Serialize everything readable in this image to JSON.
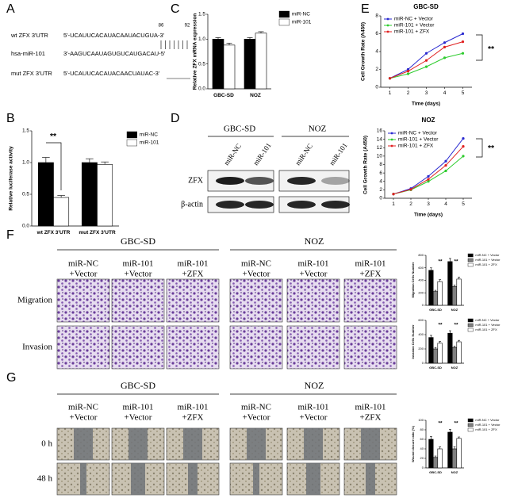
{
  "panel_labels": [
    "A",
    "B",
    "C",
    "D",
    "E",
    "F",
    "G"
  ],
  "panel_a": {
    "positions": [
      86,
      92
    ],
    "rows": [
      {
        "label": "wt ZFX 3'UTR",
        "sequence": "5'-UCAUUCACAUACAAUACUGUA-3'"
      },
      {
        "label": "hsa-miR-101",
        "sequence": "3'-AAGUCAAUAGUGUCAUGACAU-5'"
      },
      {
        "label": "mut ZFX 3'UTR",
        "sequence": "5'-UCAUUCACAUACAACUAUAC-3'"
      }
    ]
  },
  "panel_d": {
    "groups": [
      "GBC-SD",
      "NOZ"
    ],
    "lanes": [
      "miR-NC",
      "miR-101",
      "miR-NC",
      "miR-101"
    ],
    "rows": [
      "ZFX",
      "β-actin"
    ]
  },
  "panel_f": {
    "groups": [
      "GBC-SD",
      "NOZ"
    ],
    "columns": [
      [
        "miR-NC",
        "+Vector"
      ],
      [
        "miR-101",
        "+Vector"
      ],
      [
        "miR-101",
        "+ZFX"
      ],
      [
        "miR-NC",
        "+Vector"
      ],
      [
        "miR-101",
        "+Vector"
      ],
      [
        "miR-101",
        "+ZFX"
      ]
    ],
    "rows": [
      "Migration",
      "Invasion"
    ]
  },
  "panel_g": {
    "groups": [
      "GBC-SD",
      "NOZ"
    ],
    "columns": [
      [
        "miR-NC",
        "+Vector"
      ],
      [
        "miR-101",
        "+Vector"
      ],
      [
        "miR-101",
        "+ZFX"
      ],
      [
        "miR-NC",
        "+Vector"
      ],
      [
        "miR-101",
        "+Vector"
      ],
      [
        "miR-101",
        "+ZFX"
      ]
    ],
    "rows": [
      "0 h",
      "48 h"
    ]
  },
  "chart_data": [
    {
      "type": "bar",
      "ylabel": "Relative luciferase activity",
      "categories": [
        "wt ZFX 3'UTR",
        "mut ZFX 3'UTR"
      ],
      "series": [
        {
          "name": "miR-NC",
          "color": "#000000",
          "values": [
            1,
            1
          ],
          "errors": [
            0.08,
            0.06
          ]
        },
        {
          "name": "miR-101",
          "color": "#ffffff",
          "values": [
            0.45,
            0.97
          ],
          "errors": [
            0.03,
            0.04
          ]
        }
      ],
      "ylim": [
        0,
        1.5
      ],
      "yticks": [
        {
          "value": 0,
          "label": "0.0"
        },
        {
          "value": 0.5,
          "label": "0.5"
        },
        {
          "value": 1,
          "label": "1.0"
        },
        {
          "value": 1.5,
          "label": "1.5"
        }
      ],
      "annotations": [
        "**"
      ]
    },
    {
      "type": "bar",
      "ylabel": "Relative ZFX mRNA expression",
      "categories": [
        "GBC-SD",
        "NOZ"
      ],
      "series": [
        {
          "name": "miR-NC",
          "color": "#000000",
          "values": [
            1,
            1
          ],
          "errors": [
            0.03,
            0.03
          ]
        },
        {
          "name": "miR-101",
          "color": "#ffffff",
          "values": [
            0.88,
            1.12
          ],
          "errors": [
            0.04,
            0.03
          ]
        }
      ],
      "ylim": [
        0,
        1.5
      ],
      "yticks": [
        {
          "value": 0,
          "label": "0.0"
        },
        {
          "value": 0.5,
          "label": "0.5"
        },
        {
          "value": 1,
          "label": "1.0"
        },
        {
          "value": 1.5,
          "label": "1.5"
        }
      ]
    },
    {
      "type": "line",
      "title": "GBC-SD",
      "xlabel": "Time (days)",
      "ylabel": "Cell Growth Rate (A450)",
      "x": [
        1,
        2,
        3,
        4,
        5
      ],
      "xlim": [
        0.5,
        5.5
      ],
      "xticks": [
        1,
        2,
        3,
        4,
        5
      ],
      "ylim": [
        0,
        8
      ],
      "yticks": [
        0,
        2,
        4,
        6,
        8
      ],
      "series": [
        {
          "name": "miR-NC + Vector",
          "color": "#2a2ad0",
          "values": [
            1,
            2,
            3.8,
            5,
            6
          ]
        },
        {
          "name": "miR-101 + Vector",
          "color": "#2ecc2e",
          "values": [
            1,
            1.5,
            2.3,
            3.3,
            3.8
          ]
        },
        {
          "name": "miR-101 + ZFX",
          "color": "#e02020",
          "values": [
            1,
            1.8,
            3,
            4.5,
            5.1
          ]
        }
      ],
      "annotations": [
        "**"
      ]
    },
    {
      "type": "line",
      "title": "NOZ",
      "xlabel": "Time (days)",
      "ylabel": "Cell Growth Rate (A450)",
      "x": [
        1,
        2,
        3,
        4,
        5
      ],
      "xlim": [
        0.5,
        5.5
      ],
      "xticks": [
        1,
        2,
        3,
        4,
        5
      ],
      "ylim": [
        0,
        16
      ],
      "yticks": [
        0,
        2,
        4,
        6,
        8,
        10,
        12,
        14,
        16
      ],
      "series": [
        {
          "name": "miR-NC + Vector",
          "color": "#2a2ad0",
          "values": [
            1,
            2.3,
            5.2,
            8.8,
            14.2
          ]
        },
        {
          "name": "miR-101 + Vector",
          "color": "#2ecc2e",
          "values": [
            1,
            2,
            4,
            6.5,
            10
          ]
        },
        {
          "name": "miR-101 + ZFX",
          "color": "#e02020",
          "values": [
            1,
            2.1,
            4.5,
            7.8,
            12.3
          ]
        }
      ],
      "annotations": [
        "**"
      ]
    },
    {
      "type": "bar",
      "ylabel": "Migration Cells Number",
      "categories": [
        "GBC-SD",
        "NOZ"
      ],
      "series": [
        {
          "name": "miR-NC + Vector",
          "color": "#000000",
          "values": [
            560,
            700
          ],
          "errors": [
            40,
            50
          ]
        },
        {
          "name": "miR-101 + Vector",
          "color": "#808080",
          "values": [
            220,
            300
          ],
          "errors": [
            20,
            25
          ]
        },
        {
          "name": "miR-101 + ZFX",
          "color": "#ffffff",
          "values": [
            380,
            420
          ],
          "errors": [
            30,
            30
          ]
        }
      ],
      "ylim": [
        0,
        800
      ],
      "yticks": [
        0,
        200,
        400,
        600,
        800
      ],
      "annotations": [
        "**",
        "**"
      ]
    },
    {
      "type": "bar",
      "ylabel": "Invasion Cells Number",
      "categories": [
        "GBC-SD",
        "NOZ"
      ],
      "series": [
        {
          "name": "miR-NC + Vector",
          "color": "#000000",
          "values": [
            360,
            420
          ],
          "errors": [
            30,
            35
          ]
        },
        {
          "name": "miR-101 + Vector",
          "color": "#808080",
          "values": [
            200,
            220
          ],
          "errors": [
            20,
            20
          ]
        },
        {
          "name": "miR-101 + ZFX",
          "color": "#ffffff",
          "values": [
            280,
            300
          ],
          "errors": [
            25,
            20
          ]
        }
      ],
      "ylim": [
        0,
        600
      ],
      "yticks": [
        0,
        200,
        400,
        600
      ],
      "annotations": [
        "**",
        "**"
      ]
    },
    {
      "type": "bar",
      "ylabel": "Wound closure ratio (%)",
      "categories": [
        "GBC-SD",
        "NOZ"
      ],
      "series": [
        {
          "name": "miR-NC + Vector",
          "color": "#000000",
          "values": [
            60,
            75
          ],
          "errors": [
            6,
            6
          ]
        },
        {
          "name": "miR-101 + Vector",
          "color": "#808080",
          "values": [
            22,
            40
          ],
          "errors": [
            3,
            4
          ]
        },
        {
          "name": "miR-101 + ZFX",
          "color": "#ffffff",
          "values": [
            40,
            62
          ],
          "errors": [
            4,
            3
          ]
        }
      ],
      "ylim": [
        0,
        100
      ],
      "yticks": [
        0,
        20,
        40,
        60,
        80,
        100
      ],
      "annotations": [
        "**",
        "**"
      ]
    }
  ]
}
